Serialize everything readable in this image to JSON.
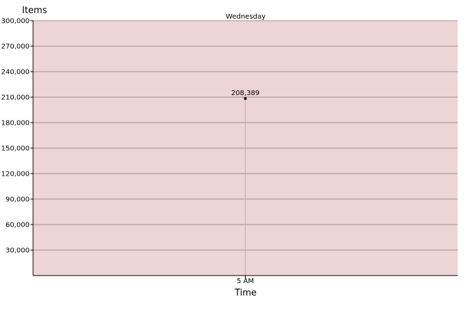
{
  "chart_data": {
    "type": "scatter",
    "subtitle": "Wednesday",
    "ylabel": "Items",
    "xlabel": "Time",
    "categories": [
      "5 AM"
    ],
    "series": [
      {
        "values": [
          208389
        ],
        "labels": [
          "208,389"
        ]
      }
    ],
    "ylim": [
      0,
      300000
    ],
    "yticks": [
      30000,
      60000,
      90000,
      120000,
      150000,
      180000,
      210000,
      240000,
      270000,
      300000
    ],
    "ytick_labels": [
      "30,000",
      "60,000",
      "90,000",
      "120,000",
      "150,000",
      "180,000",
      "210,000",
      "240,000",
      "270,000",
      "300,000"
    ],
    "grid": true,
    "colors": {
      "plot_background": "#efd4d5",
      "gridline": "#7a7a7a",
      "point": "#000000",
      "drop_line": "#c9a9aa"
    }
  }
}
